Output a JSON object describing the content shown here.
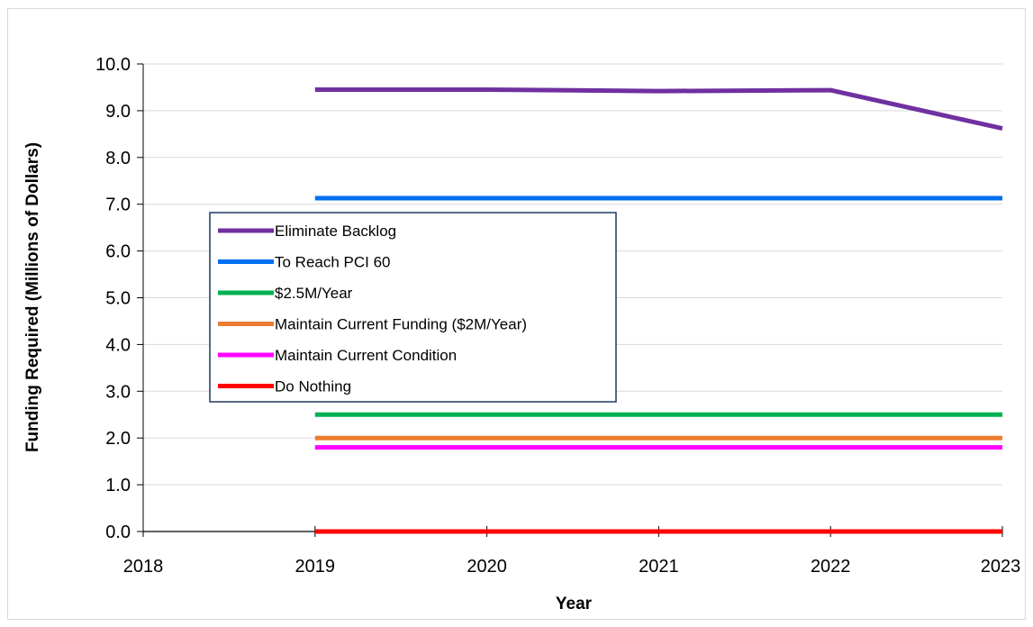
{
  "chart_data": {
    "type": "line",
    "title": "",
    "xlabel": "Year",
    "ylabel": "Funding Required (Millions of Dollars)",
    "xlim": [
      2018,
      2023
    ],
    "ylim": [
      0,
      10
    ],
    "x_ticks": [
      "2018",
      "2019",
      "2020",
      "2021",
      "2022",
      "2023"
    ],
    "y_ticks": [
      "0.0",
      "1.0",
      "2.0",
      "3.0",
      "4.0",
      "5.0",
      "6.0",
      "7.0",
      "8.0",
      "9.0",
      "10.0"
    ],
    "grid": true,
    "legend_position": "left",
    "x": [
      2019,
      2020,
      2021,
      2022,
      2023
    ],
    "series": [
      {
        "name": "Eliminate Backlog",
        "color": "#7030a0",
        "values": [
          9.45,
          9.45,
          9.42,
          9.44,
          8.62
        ]
      },
      {
        "name": "To Reach PCI 60",
        "color": "#0070f0",
        "values": [
          7.13,
          7.13,
          7.13,
          7.13,
          7.13
        ]
      },
      {
        "name": "$2.5M/Year",
        "color": "#00b050",
        "values": [
          2.5,
          2.5,
          2.5,
          2.5,
          2.5
        ]
      },
      {
        "name": "Maintain Current Funding ($2M/Year)",
        "color": "#ed7d31",
        "values": [
          2.0,
          2.0,
          2.0,
          2.0,
          2.0
        ]
      },
      {
        "name": "Maintain Current Condition",
        "color": "#ff00ff",
        "values": [
          1.8,
          1.8,
          1.8,
          1.8,
          1.8
        ]
      },
      {
        "name": "Do Nothing",
        "color": "#ff0000",
        "values": [
          0.0,
          0.0,
          0.0,
          0.0,
          0.0
        ]
      }
    ]
  }
}
